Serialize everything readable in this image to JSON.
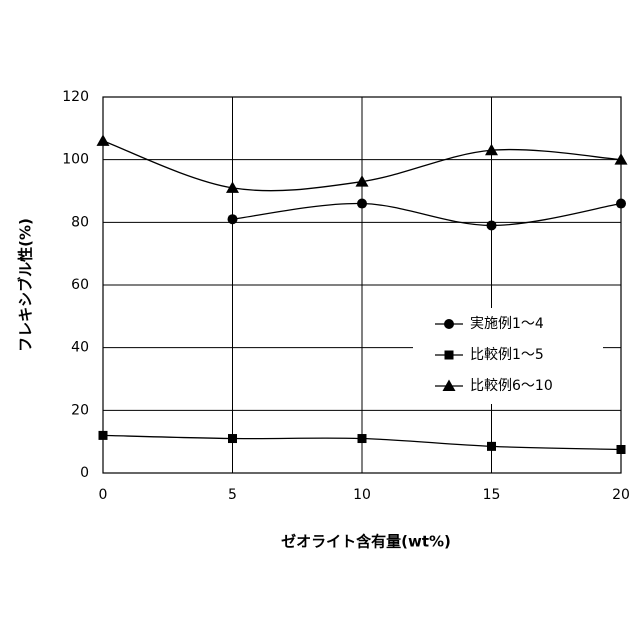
{
  "chart_data": {
    "type": "line",
    "x_label": "ゼオライト含有量(wt%)",
    "y_label": "フレキシブル性(%)",
    "x": [
      0,
      5,
      10,
      15,
      20
    ],
    "series": [
      {
        "name": "実施例1～4",
        "color": "#000000",
        "marker": "circle",
        "values": [
          null,
          81,
          86,
          79,
          86
        ]
      },
      {
        "name": "比較例1～5",
        "color": "#000000",
        "marker": "square",
        "values": [
          12,
          11,
          11,
          8.5,
          7.5
        ]
      },
      {
        "name": "比較例6～10",
        "color": "#000000",
        "marker": "triangle",
        "values": [
          106,
          91,
          93,
          103,
          100
        ]
      }
    ],
    "xlim": [
      0,
      20
    ],
    "xticks": [
      0,
      5,
      10,
      15,
      20
    ],
    "ylim": [
      0,
      120
    ],
    "yticks": [
      0,
      20,
      40,
      60,
      80,
      100,
      120
    ],
    "grid": true,
    "smooth": true,
    "legend": "right"
  }
}
